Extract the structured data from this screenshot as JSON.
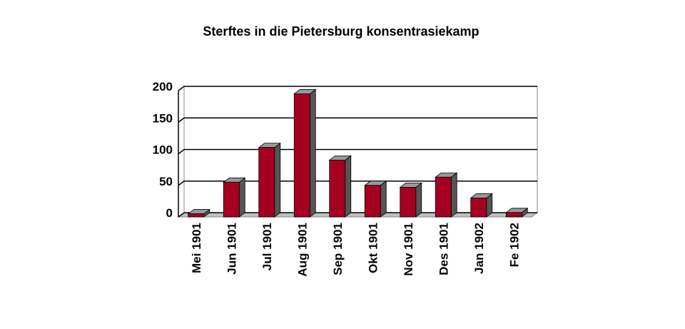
{
  "chart_data": {
    "type": "bar",
    "title": "Sterftes in die Pietersburg konsentrasiekamp",
    "categories": [
      "Mei 1901",
      "Jun 1901",
      "Jul 1901",
      "Aug 1901",
      "Sep 1901",
      "Okt 1901",
      "Nov 1901",
      "Des 1901",
      "Jan 1902",
      "Fe 1902"
    ],
    "values": [
      5,
      55,
      110,
      195,
      90,
      50,
      47,
      63,
      30,
      7
    ],
    "color": "#a50021",
    "ylim": [
      0,
      200
    ],
    "yticks": [
      0,
      50,
      100,
      150,
      200
    ],
    "grid": true
  }
}
